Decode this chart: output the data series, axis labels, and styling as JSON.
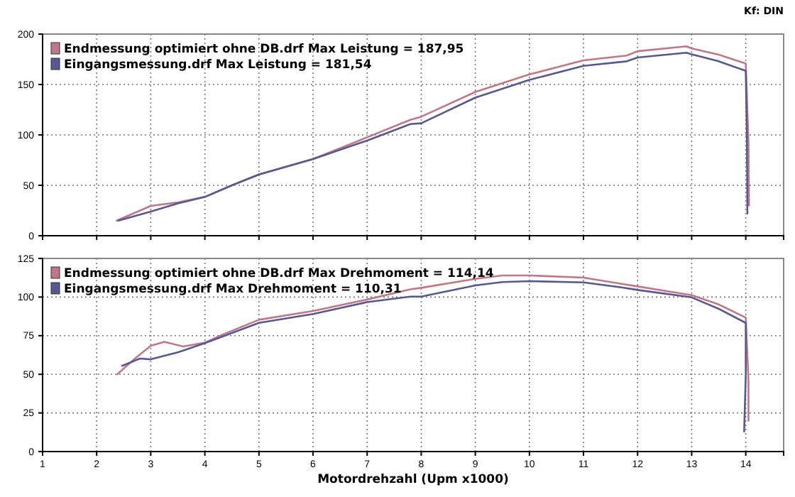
{
  "chart_data": [
    {
      "type": "line",
      "annotations": [
        "Kf: DIN"
      ],
      "xlim": [
        1,
        14.7
      ],
      "xticks": [
        1,
        2,
        3,
        4,
        5,
        6,
        7,
        8,
        9,
        10,
        11,
        12,
        13,
        14
      ],
      "ylim": [
        0,
        200
      ],
      "yticks": [
        0,
        50,
        100,
        150,
        200
      ],
      "grid": true,
      "legend": "top left",
      "tick_labels": "y",
      "line_style": "solid",
      "series": [
        {
          "name": "Endmessung optimiert ohne DB.drf Max Leistung = 187,95",
          "color": "#c07888",
          "x": [
            2.37,
            3,
            3.5,
            4,
            4.5,
            5,
            6,
            7,
            7.8,
            8,
            9,
            10,
            11,
            11.8,
            12,
            12.9,
            13,
            13.5,
            14,
            14.05,
            14.06
          ],
          "values": [
            15,
            29.6,
            33,
            38.5,
            50,
            60.7,
            76,
            97.6,
            115,
            118,
            142.6,
            160,
            174,
            178.7,
            183,
            187.9,
            185.7,
            179.6,
            170.8,
            93,
            30
          ]
        },
        {
          "name": "Eingangsmessung.drf Max Leistung = 181,54",
          "color": "#585890",
          "x": [
            2.4,
            3,
            3.5,
            4,
            4.5,
            5,
            6,
            7,
            7.8,
            8,
            9,
            10,
            11,
            11.8,
            12,
            12.9,
            13,
            13.5,
            14,
            14.02,
            14.03
          ],
          "values": [
            15,
            24,
            32,
            38.5,
            50,
            60.7,
            76,
            94.4,
            110.7,
            111.5,
            137,
            154.6,
            168.5,
            173,
            176.8,
            181.5,
            180,
            173,
            163.5,
            100,
            22
          ]
        }
      ]
    },
    {
      "type": "line",
      "xlabel": "Motordrehzahl (Upm x1000)",
      "xlim": [
        1,
        14.7
      ],
      "xticks": [
        1,
        2,
        3,
        4,
        5,
        6,
        7,
        8,
        9,
        10,
        11,
        12,
        13,
        14
      ],
      "ylim": [
        0,
        125
      ],
      "yticks": [
        0,
        25,
        50,
        75,
        100,
        125
      ],
      "grid": true,
      "legend": "top left",
      "line_style": "solid",
      "series": [
        {
          "name": "Endmessung optimiert ohne DB.drf Max Drehmoment = 114,14",
          "color": "#c07888",
          "x": [
            2.38,
            2.7,
            3,
            3.25,
            3.6,
            4,
            4.3,
            5,
            6,
            7,
            7.8,
            8,
            9,
            9.5,
            10,
            11,
            11.7,
            12,
            13,
            13.5,
            14,
            14.05,
            14.05
          ],
          "values": [
            50,
            60,
            68.5,
            71,
            68,
            70.5,
            75.3,
            85.3,
            91,
            98.4,
            105,
            106,
            111.8,
            114,
            114,
            112.6,
            108.6,
            106.9,
            101.2,
            95.2,
            86.7,
            46,
            20
          ]
        },
        {
          "name": "Eingangsmessung.drf Max Drehmoment = 110,31",
          "color": "#585890",
          "x": [
            2.47,
            2.8,
            3,
            3.5,
            4,
            5,
            6,
            7,
            7.8,
            8,
            9,
            9.5,
            10,
            11,
            11.7,
            12,
            13,
            13.5,
            14,
            14.0,
            13.97
          ],
          "values": [
            55.5,
            60.2,
            59.7,
            64.2,
            70.2,
            83.3,
            89,
            96.7,
            100.3,
            100.3,
            107.5,
            109.7,
            110.3,
            109.5,
            106.3,
            104.6,
            99.8,
            92.4,
            83.3,
            50,
            13
          ]
        }
      ]
    }
  ]
}
